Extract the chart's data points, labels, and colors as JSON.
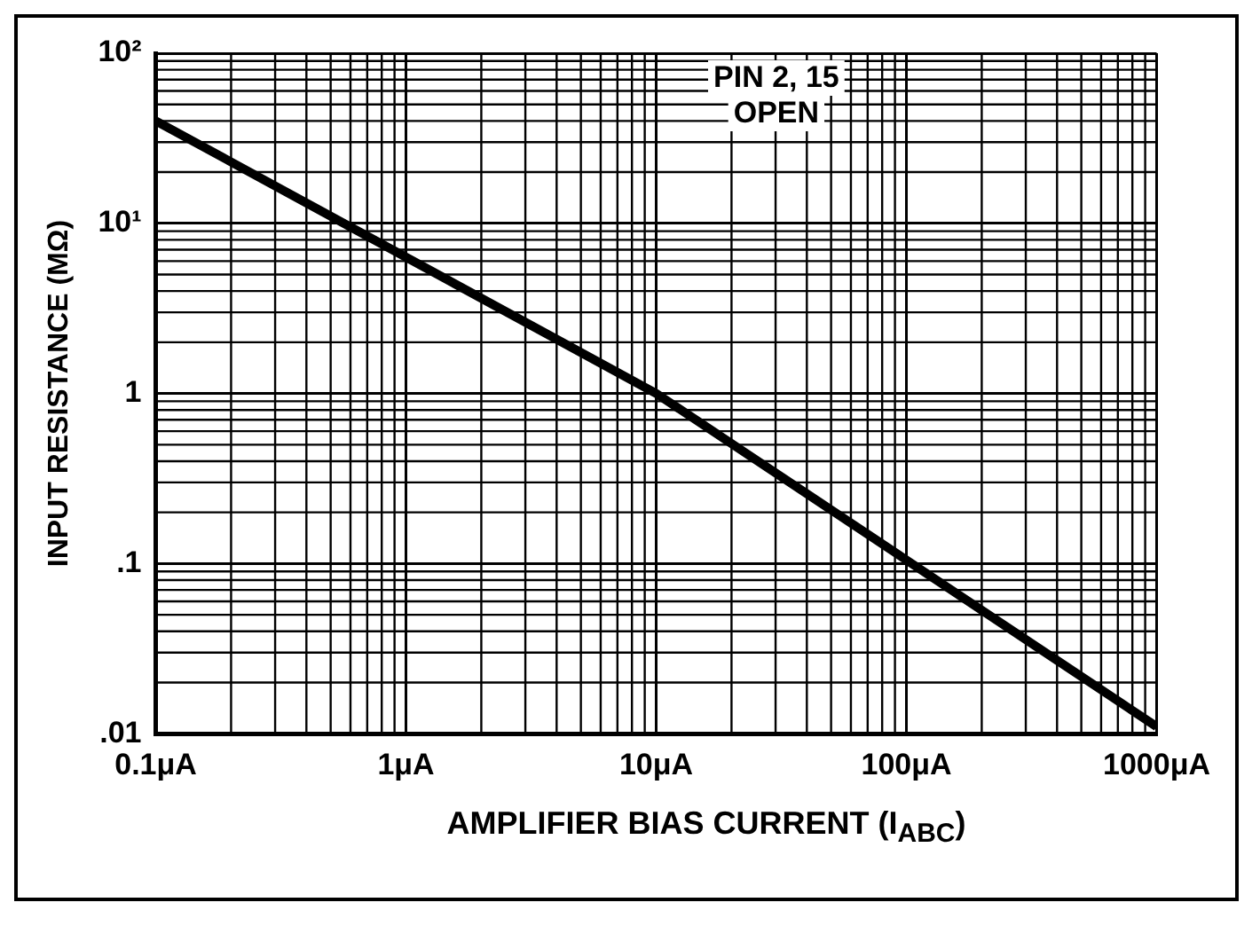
{
  "chart_data": {
    "type": "line",
    "xlabel": "AMPLIFIER BIAS CURRENT (I$_{ABC}$)",
    "ylabel": "INPUT RESISTANCE (MΩ)",
    "x": [
      0.1,
      10,
      1000
    ],
    "series": [
      {
        "color": "#000000",
        "values": [
          40,
          1,
          0.011
        ]
      }
    ],
    "log": "xy",
    "xlim": [
      0.1,
      1000
    ],
    "ylim": [
      0.01,
      100
    ],
    "xticks": [
      {
        "value": 0.1,
        "label": "0.1μA"
      },
      {
        "value": 1,
        "label": "1μA"
      },
      {
        "value": 10,
        "label": "10μA"
      },
      {
        "value": 100,
        "label": "100μA"
      },
      {
        "value": 1000,
        "label": "1000μA"
      }
    ],
    "yticks": [
      {
        "value": 0.01,
        "label": ".01"
      },
      {
        "value": 0.1,
        "label": ".1"
      },
      {
        "value": 1,
        "label": "1"
      },
      {
        "value": 10,
        "label": "10¹"
      },
      {
        "value": 100,
        "label": "10²"
      }
    ],
    "grid": true,
    "marker": "none",
    "line_style": "solid",
    "legend": false,
    "annotations": [
      "PIN 2, 15\nOPEN"
    ]
  }
}
